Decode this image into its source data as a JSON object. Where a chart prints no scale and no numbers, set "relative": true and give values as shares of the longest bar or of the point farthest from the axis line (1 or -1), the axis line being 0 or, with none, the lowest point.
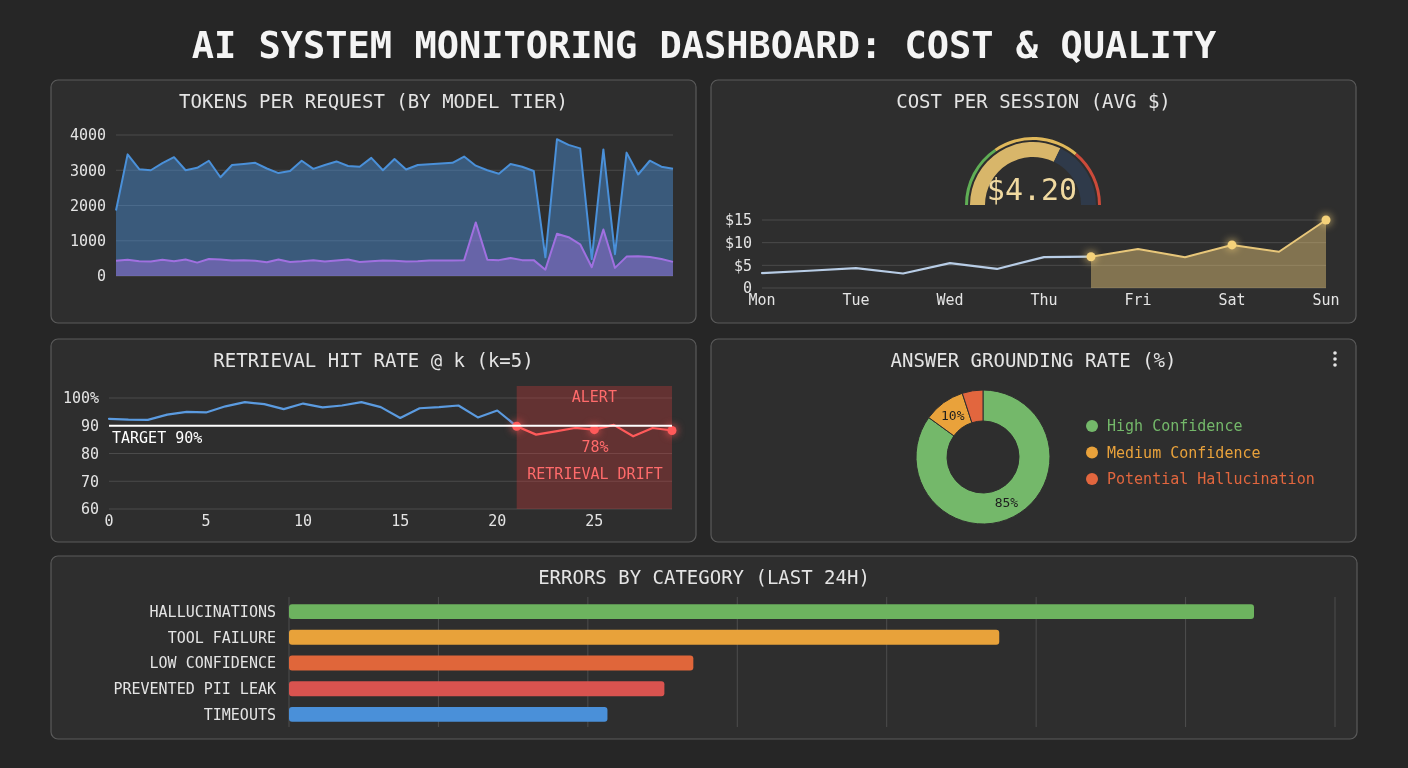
{
  "chart_data": [
    {
      "type": "other",
      "title": "AI SYSTEM MONITORING DASHBOARD: COST & QUALITY"
    },
    {
      "type": "area",
      "title": "TOKENS PER REQUEST (BY MODEL TIER)",
      "categories": [
        null,
        null,
        null,
        null,
        null,
        null,
        null,
        null,
        null,
        null,
        null,
        null,
        null,
        null,
        null,
        null,
        null,
        null,
        null,
        null,
        null,
        null,
        null,
        null,
        null,
        null,
        null,
        null,
        null,
        null,
        null,
        null,
        null,
        null,
        null,
        null,
        null,
        null,
        null,
        null,
        null,
        null,
        null,
        null,
        null,
        null,
        null,
        null,
        null
      ],
      "series": [
        {
          "color": "#4a90d9",
          "values": [
            1860,
            3450,
            3030,
            3000,
            3200,
            3370,
            3000,
            3070,
            3270,
            2800,
            3150,
            3180,
            3210,
            3050,
            2920,
            2980,
            3270,
            3040,
            3150,
            3250,
            3120,
            3100,
            3350,
            3000,
            3320,
            3020,
            3150,
            3170,
            3190,
            3210,
            3390,
            3130,
            3000,
            2900,
            3180,
            3100,
            2980,
            530,
            3880,
            3720,
            3620,
            480,
            3590,
            620,
            3500,
            2880,
            3270,
            3100,
            3040
          ]
        },
        {
          "color": "#a070e0",
          "values": [
            430,
            460,
            420,
            410,
            460,
            420,
            470,
            380,
            480,
            470,
            440,
            450,
            430,
            390,
            470,
            400,
            420,
            450,
            410,
            440,
            470,
            400,
            420,
            440,
            430,
            410,
            420,
            440,
            440,
            440,
            450,
            1520,
            460,
            450,
            510,
            450,
            450,
            180,
            1200,
            1100,
            900,
            250,
            1320,
            230,
            550,
            560,
            540,
            480,
            400
          ]
        }
      ],
      "ylim": [
        0,
        4000
      ],
      "yticks": [
        0,
        1000,
        2000,
        3000,
        4000
      ],
      "tick_labels": "y",
      "grid": "y"
    },
    {
      "type": "line",
      "title": "COST PER SESSION (AVG $)",
      "annotations": [
        "$4.20"
      ],
      "categories": [
        "Mon",
        null,
        "Tue",
        null,
        "Wed",
        null,
        "Thu",
        null,
        "Fri",
        null,
        "Sat",
        null,
        "Sun"
      ],
      "ylim": [
        0,
        15
      ],
      "yticks": [
        0,
        {
          "value": 5,
          "label": "$5"
        },
        {
          "value": 10,
          "label": "$10"
        },
        {
          "value": 15,
          "label": "$15"
        }
      ],
      "grid": "y",
      "series": [
        {
          "type": "line",
          "color": "#b8cde6",
          "values": [
            3.3,
            3.8,
            4.4,
            3.2,
            5.5,
            4.2,
            6.8,
            6.9,
            null,
            null,
            null,
            null,
            null
          ]
        },
        {
          "type": "area",
          "color": "#e8c77a",
          "values": [
            null,
            null,
            null,
            null,
            null,
            null,
            null,
            6.9,
            8.6,
            6.8,
            9.5,
            8.0,
            15
          ]
        },
        {
          "type": "scatter",
          "color": "#f5d27a",
          "values": [
            null,
            null,
            null,
            null,
            null,
            null,
            null,
            6.9,
            null,
            null,
            9.5,
            null,
            15
          ]
        }
      ]
    },
    {
      "type": "line",
      "title": "RETRIEVAL HIT RATE @ k (k=5)",
      "annotations": [
        "78%",
        "RETRIEVAL DRIFT"
      ],
      "xlim": [
        0,
        29
      ],
      "xticks": [
        0,
        5,
        10,
        15,
        20,
        25
      ],
      "ylim": [
        60,
        100
      ],
      "yticks": [
        60,
        70,
        80,
        90,
        {
          "value": 100,
          "label": "100%"
        }
      ],
      "grid": "y",
      "ref_lines": [
        {
          "axis": "y",
          "value": 90,
          "label": "TARGET 90%",
          "color": "#ffffff"
        }
      ],
      "bands": [
        {
          "axis": "x",
          "from": 21,
          "to": 29,
          "label": "ALERT",
          "color": "#d23c3c"
        }
      ],
      "series": [
        {
          "type": "line",
          "color": "#5b9be0",
          "x": [
            0,
            1,
            2,
            3,
            4,
            5,
            6,
            7,
            8,
            9,
            10,
            11,
            12,
            13,
            14,
            15,
            16,
            17,
            18,
            19,
            20,
            21
          ],
          "values": [
            92.5,
            92.2,
            92.1,
            94,
            95,
            94.8,
            97,
            98.5,
            97.8,
            96,
            98,
            96.6,
            97.3,
            98.5,
            96.7,
            92.8,
            96.3,
            96.7,
            97.3,
            93,
            95.5,
            89.8
          ]
        },
        {
          "type": "line",
          "color": "#ff5a5a",
          "x": [
            21,
            22,
            23,
            24,
            25,
            26,
            27,
            28,
            29
          ],
          "values": [
            89.8,
            86.8,
            88,
            89.2,
            88.6,
            90.3,
            86.2,
            89.2,
            88.3
          ]
        },
        {
          "type": "scatter",
          "color": "#ff5a5a",
          "x": [
            21,
            25,
            29
          ],
          "values": [
            89.8,
            88.6,
            88.3
          ]
        }
      ]
    },
    {
      "type": "donut",
      "title": "ANSWER GROUNDING RATE (%)",
      "categories": [
        "High Confidence",
        "Medium Confidence",
        "Potential Hallucination"
      ],
      "values": [
        85,
        10,
        5
      ],
      "colors": [
        "#74b86a",
        "#e9a23b",
        "#e2663e"
      ],
      "value_labels": [
        "85%",
        "10%",
        null
      ],
      "legend": "right"
    },
    {
      "type": "bar",
      "title": "ERRORS BY CATEGORY (LAST 24H)",
      "orientation": "horizontal",
      "relative": true,
      "grid": "x",
      "categories": [
        "HALLUCINATIONS",
        "TOOL FAILURE",
        "LOW CONFIDENCE",
        "PREVENTED PII LEAK",
        "TIMEOUTS"
      ],
      "values": [
        1,
        0.736,
        0.419,
        0.389,
        0.33
      ],
      "colors": [
        "#6db35f",
        "#e8a23a",
        "#e0663a",
        "#d9534f",
        "#4a90d9"
      ]
    }
  ]
}
